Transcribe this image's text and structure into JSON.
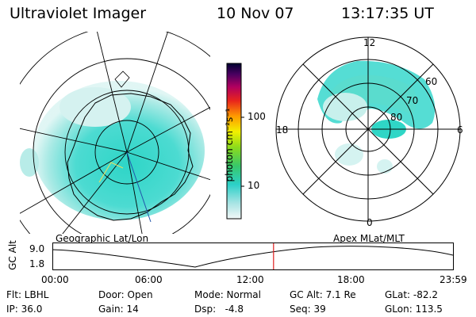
{
  "header": {
    "instrument": "Ultraviolet Imager",
    "date": "10 Nov 07",
    "time": "13:17:35 UT"
  },
  "colorbar": {
    "unit_label": "photon cm⁻²s⁻¹",
    "ticks": [
      "100",
      "10"
    ]
  },
  "polar_plot": {
    "mlt_labels": {
      "top": "12",
      "left": "18",
      "right": "6",
      "bottom": "0"
    },
    "lat_labels": [
      "60",
      "70",
      "80"
    ]
  },
  "panel_labels": {
    "left": "Geographic Lat/Lon",
    "right": "Apex MLat/MLT"
  },
  "timeline": {
    "y_axis_label": "GC Alt",
    "y_ticks": [
      "9.0",
      "1.8"
    ],
    "x_ticks": [
      "00:00",
      "06:00",
      "12:00",
      "18:00",
      "23:59"
    ],
    "marker_time_fraction": 0.552
  },
  "status": {
    "flt": "Flt: LBHL",
    "ip": "IP: 36.0",
    "door": "Door: Open",
    "gain": "Gain: 14",
    "mode": "Mode: Normal",
    "dsp": "Dsp:   -4.8",
    "gc_alt": "GC Alt: 7.1 Re",
    "seq": "Seq: 39",
    "glat": "GLat: -82.2",
    "glon": "GLon: 113.5"
  }
}
